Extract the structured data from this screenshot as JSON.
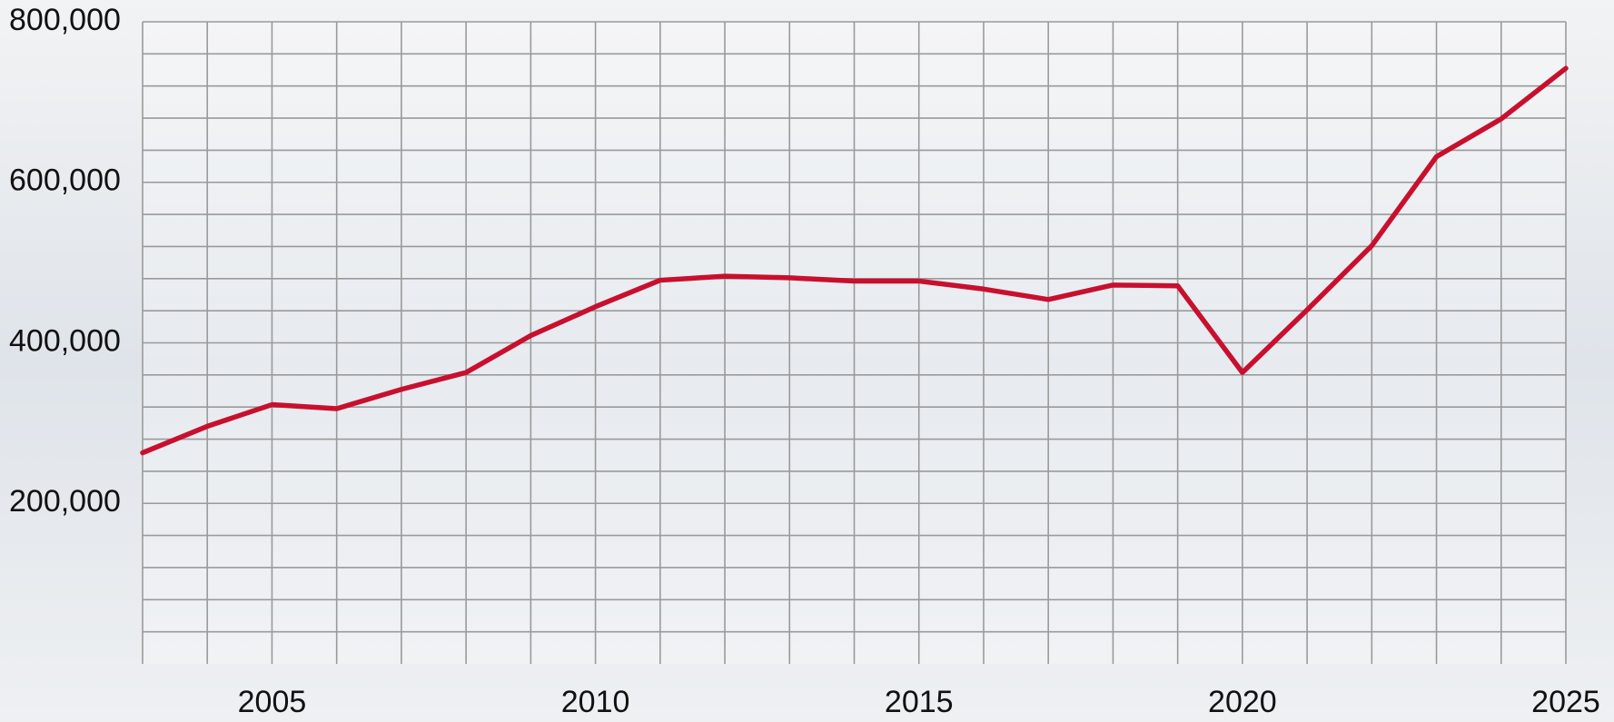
{
  "chart_data": {
    "type": "line",
    "x": [
      2003,
      2004,
      2005,
      2006,
      2007,
      2008,
      2009,
      2010,
      2011,
      2012,
      2013,
      2014,
      2015,
      2016,
      2017,
      2018,
      2019,
      2020,
      2021,
      2022,
      2023,
      2024,
      2025
    ],
    "series": [
      {
        "color": "#c8102e",
        "values": [
          263000,
          296000,
          323000,
          318000,
          342000,
          363000,
          409000,
          445000,
          478000,
          483000,
          481000,
          477000,
          477000,
          467000,
          454000,
          472000,
          471000,
          363000,
          441000,
          521000,
          632000,
          679000,
          742000
        ]
      }
    ],
    "xlim": [
      2003,
      2025
    ],
    "xticks": [
      2005,
      2010,
      2015,
      2020,
      2025
    ],
    "ylim": [
      0,
      800000
    ],
    "yticks": [
      {
        "value": 200000,
        "label": "200,000"
      },
      {
        "value": 400000,
        "label": "400,000"
      },
      {
        "value": 600000,
        "label": "600,000"
      },
      {
        "value": 800000,
        "label": "800,000"
      }
    ],
    "minor_yticks": [
      40000,
      80000,
      120000,
      160000,
      200000,
      240000,
      280000,
      320000,
      360000,
      400000,
      440000,
      480000,
      520000,
      560000,
      600000,
      640000,
      680000,
      720000,
      760000,
      800000
    ],
    "grid": true
  }
}
